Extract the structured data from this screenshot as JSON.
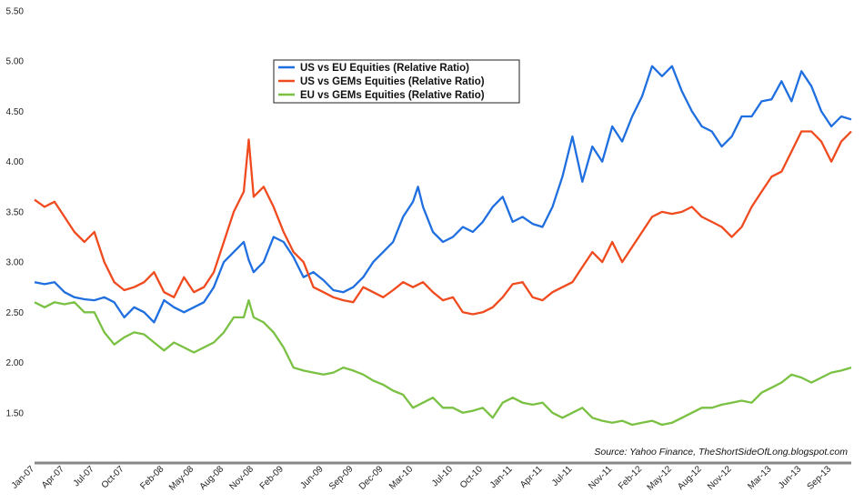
{
  "chart_data": {
    "type": "line",
    "title": "",
    "xlabel": "",
    "ylabel": "",
    "ylim": [
      1.0,
      5.5
    ],
    "y_ticks": [
      "1.50",
      "2.00",
      "2.50",
      "3.00",
      "3.50",
      "4.00",
      "4.50",
      "5.00",
      "5.50"
    ],
    "x_tick_labels": [
      "Jan-07",
      "Apr-07",
      "Jul-07",
      "Oct-07",
      "Feb-08",
      "May-08",
      "Aug-08",
      "Nov-08",
      "Feb-09",
      "Jun-09",
      "Sep-09",
      "Dec-09",
      "Mar-10",
      "Jul-10",
      "Oct-10",
      "Jan-11",
      "Apr-11",
      "Jul-11",
      "Nov-11",
      "Feb-12",
      "May-12",
      "Aug-12",
      "Nov-12",
      "Mar-13",
      "Jun-13",
      "Sep-13"
    ],
    "x_tick_positions": [
      0,
      3,
      6,
      9,
      13,
      16,
      19,
      22,
      25,
      29,
      32,
      35,
      38,
      42,
      45,
      48,
      51,
      54,
      58,
      61,
      64,
      67,
      70,
      74,
      77,
      80
    ],
    "x_range": [
      0,
      82
    ],
    "source": "Source: Yahoo Finance, TheShortSideOfLong.blogspot.com",
    "legend_position": "top-center",
    "series": [
      {
        "name": "US vs EU Equities (Relative Ratio)",
        "color": "#1f6fe0",
        "points": [
          [
            0,
            2.8
          ],
          [
            1,
            2.78
          ],
          [
            2,
            2.8
          ],
          [
            3,
            2.7
          ],
          [
            4,
            2.65
          ],
          [
            5,
            2.63
          ],
          [
            6,
            2.62
          ],
          [
            7,
            2.65
          ],
          [
            8,
            2.6
          ],
          [
            9,
            2.45
          ],
          [
            10,
            2.55
          ],
          [
            11,
            2.5
          ],
          [
            12,
            2.4
          ],
          [
            13,
            2.62
          ],
          [
            14,
            2.55
          ],
          [
            15,
            2.5
          ],
          [
            16,
            2.55
          ],
          [
            17,
            2.6
          ],
          [
            18,
            2.75
          ],
          [
            19,
            3.0
          ],
          [
            20,
            3.1
          ],
          [
            21,
            3.2
          ],
          [
            21.5,
            3.02
          ],
          [
            22,
            2.9
          ],
          [
            22.5,
            2.95
          ],
          [
            23,
            3.0
          ],
          [
            24,
            3.25
          ],
          [
            25,
            3.2
          ],
          [
            26,
            3.05
          ],
          [
            27,
            2.85
          ],
          [
            28,
            2.9
          ],
          [
            29,
            2.82
          ],
          [
            30,
            2.72
          ],
          [
            31,
            2.7
          ],
          [
            32,
            2.75
          ],
          [
            33,
            2.85
          ],
          [
            34,
            3.0
          ],
          [
            35,
            3.1
          ],
          [
            36,
            3.2
          ],
          [
            37,
            3.45
          ],
          [
            38,
            3.6
          ],
          [
            38.5,
            3.75
          ],
          [
            39,
            3.55
          ],
          [
            40,
            3.3
          ],
          [
            41,
            3.2
          ],
          [
            42,
            3.25
          ],
          [
            43,
            3.35
          ],
          [
            44,
            3.3
          ],
          [
            45,
            3.4
          ],
          [
            46,
            3.55
          ],
          [
            47,
            3.65
          ],
          [
            48,
            3.4
          ],
          [
            49,
            3.45
          ],
          [
            50,
            3.38
          ],
          [
            51,
            3.35
          ],
          [
            52,
            3.55
          ],
          [
            53,
            3.85
          ],
          [
            54,
            4.25
          ],
          [
            55,
            3.8
          ],
          [
            56,
            4.15
          ],
          [
            57,
            4.0
          ],
          [
            58,
            4.35
          ],
          [
            59,
            4.2
          ],
          [
            60,
            4.45
          ],
          [
            61,
            4.65
          ],
          [
            62,
            4.95
          ],
          [
            63,
            4.85
          ],
          [
            64,
            4.95
          ],
          [
            65,
            4.7
          ],
          [
            66,
            4.5
          ],
          [
            67,
            4.35
          ],
          [
            68,
            4.3
          ],
          [
            69,
            4.15
          ],
          [
            70,
            4.25
          ],
          [
            71,
            4.45
          ],
          [
            72,
            4.45
          ],
          [
            73,
            4.6
          ],
          [
            74,
            4.62
          ],
          [
            75,
            4.8
          ],
          [
            76,
            4.6
          ],
          [
            77,
            4.9
          ],
          [
            78,
            4.75
          ],
          [
            79,
            4.5
          ],
          [
            80,
            4.35
          ],
          [
            81,
            4.45
          ],
          [
            82,
            4.42
          ]
        ]
      },
      {
        "name": "US vs GEMs Equities (Relative Ratio)",
        "color": "#f04a1f",
        "points": [
          [
            0,
            3.62
          ],
          [
            1,
            3.55
          ],
          [
            2,
            3.6
          ],
          [
            3,
            3.45
          ],
          [
            4,
            3.3
          ],
          [
            5,
            3.2
          ],
          [
            6,
            3.3
          ],
          [
            7,
            3.0
          ],
          [
            8,
            2.8
          ],
          [
            9,
            2.72
          ],
          [
            10,
            2.75
          ],
          [
            11,
            2.8
          ],
          [
            12,
            2.9
          ],
          [
            13,
            2.7
          ],
          [
            14,
            2.65
          ],
          [
            15,
            2.85
          ],
          [
            16,
            2.7
          ],
          [
            17,
            2.75
          ],
          [
            18,
            2.9
          ],
          [
            19,
            3.2
          ],
          [
            20,
            3.5
          ],
          [
            21,
            3.7
          ],
          [
            21.5,
            4.22
          ],
          [
            22,
            3.65
          ],
          [
            23,
            3.75
          ],
          [
            24,
            3.55
          ],
          [
            25,
            3.3
          ],
          [
            26,
            3.1
          ],
          [
            27,
            3.0
          ],
          [
            28,
            2.75
          ],
          [
            29,
            2.7
          ],
          [
            30,
            2.65
          ],
          [
            31,
            2.62
          ],
          [
            32,
            2.6
          ],
          [
            33,
            2.75
          ],
          [
            34,
            2.7
          ],
          [
            35,
            2.65
          ],
          [
            36,
            2.72
          ],
          [
            37,
            2.8
          ],
          [
            38,
            2.75
          ],
          [
            39,
            2.8
          ],
          [
            40,
            2.7
          ],
          [
            41,
            2.62
          ],
          [
            42,
            2.65
          ],
          [
            43,
            2.5
          ],
          [
            44,
            2.48
          ],
          [
            45,
            2.5
          ],
          [
            46,
            2.55
          ],
          [
            47,
            2.65
          ],
          [
            48,
            2.78
          ],
          [
            49,
            2.8
          ],
          [
            50,
            2.65
          ],
          [
            51,
            2.62
          ],
          [
            52,
            2.7
          ],
          [
            53,
            2.75
          ],
          [
            54,
            2.8
          ],
          [
            55,
            2.95
          ],
          [
            56,
            3.1
          ],
          [
            57,
            3.0
          ],
          [
            58,
            3.2
          ],
          [
            59,
            3.0
          ],
          [
            60,
            3.15
          ],
          [
            61,
            3.3
          ],
          [
            62,
            3.45
          ],
          [
            63,
            3.5
          ],
          [
            64,
            3.48
          ],
          [
            65,
            3.5
          ],
          [
            66,
            3.55
          ],
          [
            67,
            3.45
          ],
          [
            68,
            3.4
          ],
          [
            69,
            3.35
          ],
          [
            70,
            3.25
          ],
          [
            71,
            3.35
          ],
          [
            72,
            3.55
          ],
          [
            73,
            3.7
          ],
          [
            74,
            3.85
          ],
          [
            75,
            3.9
          ],
          [
            76,
            4.1
          ],
          [
            77,
            4.3
          ],
          [
            78,
            4.3
          ],
          [
            79,
            4.2
          ],
          [
            80,
            4.0
          ],
          [
            81,
            4.2
          ],
          [
            82,
            4.3
          ]
        ]
      },
      {
        "name": "EU vs GEMs Equities (Relative Ratio)",
        "color": "#7ac143",
        "points": [
          [
            0,
            2.6
          ],
          [
            1,
            2.55
          ],
          [
            2,
            2.6
          ],
          [
            3,
            2.58
          ],
          [
            4,
            2.6
          ],
          [
            5,
            2.5
          ],
          [
            6,
            2.5
          ],
          [
            7,
            2.3
          ],
          [
            8,
            2.18
          ],
          [
            9,
            2.25
          ],
          [
            10,
            2.3
          ],
          [
            11,
            2.28
          ],
          [
            12,
            2.2
          ],
          [
            13,
            2.12
          ],
          [
            14,
            2.2
          ],
          [
            15,
            2.15
          ],
          [
            16,
            2.1
          ],
          [
            17,
            2.15
          ],
          [
            18,
            2.2
          ],
          [
            19,
            2.3
          ],
          [
            20,
            2.45
          ],
          [
            21,
            2.45
          ],
          [
            21.5,
            2.62
          ],
          [
            22,
            2.45
          ],
          [
            23,
            2.4
          ],
          [
            24,
            2.3
          ],
          [
            25,
            2.15
          ],
          [
            26,
            1.95
          ],
          [
            27,
            1.92
          ],
          [
            28,
            1.9
          ],
          [
            29,
            1.88
          ],
          [
            30,
            1.9
          ],
          [
            31,
            1.95
          ],
          [
            32,
            1.92
          ],
          [
            33,
            1.88
          ],
          [
            34,
            1.82
          ],
          [
            35,
            1.78
          ],
          [
            36,
            1.72
          ],
          [
            37,
            1.68
          ],
          [
            38,
            1.55
          ],
          [
            39,
            1.6
          ],
          [
            40,
            1.65
          ],
          [
            41,
            1.55
          ],
          [
            42,
            1.55
          ],
          [
            43,
            1.5
          ],
          [
            44,
            1.52
          ],
          [
            45,
            1.55
          ],
          [
            46,
            1.45
          ],
          [
            47,
            1.6
          ],
          [
            48,
            1.65
          ],
          [
            49,
            1.6
          ],
          [
            50,
            1.58
          ],
          [
            51,
            1.6
          ],
          [
            52,
            1.5
          ],
          [
            53,
            1.45
          ],
          [
            54,
            1.5
          ],
          [
            55,
            1.55
          ],
          [
            56,
            1.45
          ],
          [
            57,
            1.42
          ],
          [
            58,
            1.4
          ],
          [
            59,
            1.42
          ],
          [
            60,
            1.38
          ],
          [
            61,
            1.4
          ],
          [
            62,
            1.42
          ],
          [
            63,
            1.38
          ],
          [
            64,
            1.4
          ],
          [
            65,
            1.45
          ],
          [
            66,
            1.5
          ],
          [
            67,
            1.55
          ],
          [
            68,
            1.55
          ],
          [
            69,
            1.58
          ],
          [
            70,
            1.6
          ],
          [
            71,
            1.62
          ],
          [
            72,
            1.6
          ],
          [
            73,
            1.7
          ],
          [
            74,
            1.75
          ],
          [
            75,
            1.8
          ],
          [
            76,
            1.88
          ],
          [
            77,
            1.85
          ],
          [
            78,
            1.8
          ],
          [
            79,
            1.85
          ],
          [
            80,
            1.9
          ],
          [
            81,
            1.92
          ],
          [
            82,
            1.95
          ]
        ]
      }
    ]
  }
}
